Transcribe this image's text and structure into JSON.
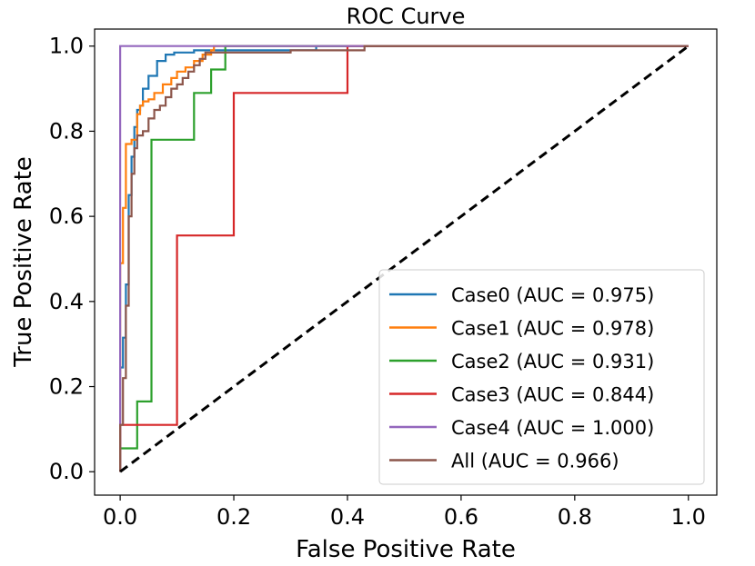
{
  "chart_data": {
    "type": "line",
    "title": "ROC Curve",
    "xlabel": "False Positive Rate",
    "ylabel": "True Positive Rate",
    "xlim": [
      -0.045,
      1.05
    ],
    "ylim": [
      -0.055,
      1.04
    ],
    "xticks": [
      0.0,
      0.2,
      0.4,
      0.6,
      0.8,
      1.0
    ],
    "yticks": [
      0.0,
      0.2,
      0.4,
      0.6,
      0.8,
      1.0
    ],
    "xtick_labels": [
      "0.0",
      "0.2",
      "0.4",
      "0.6",
      "0.8",
      "1.0"
    ],
    "ytick_labels": [
      "0.0",
      "0.2",
      "0.4",
      "0.6",
      "0.8",
      "1.0"
    ],
    "legend_position": "lower-right",
    "grid": false,
    "series": [
      {
        "name": "Case0 (AUC = 0.975)",
        "color": "#1f77b4",
        "x": [
          0,
          0,
          0.005,
          0.005,
          0.01,
          0.01,
          0.015,
          0.015,
          0.02,
          0.02,
          0.025,
          0.025,
          0.03,
          0.03,
          0.035,
          0.035,
          0.04,
          0.04,
          0.05,
          0.05,
          0.065,
          0.065,
          0.08,
          0.08,
          0.095,
          0.095,
          0.13,
          0.13,
          0.345,
          0.345,
          1.0
        ],
        "y": [
          0,
          0.245,
          0.245,
          0.315,
          0.315,
          0.44,
          0.44,
          0.65,
          0.65,
          0.74,
          0.74,
          0.81,
          0.81,
          0.85,
          0.85,
          0.86,
          0.86,
          0.9,
          0.9,
          0.93,
          0.93,
          0.965,
          0.965,
          0.98,
          0.98,
          0.985,
          0.985,
          0.99,
          0.99,
          1.0,
          1.0
        ]
      },
      {
        "name": "Case1 (AUC = 0.978)",
        "color": "#ff7f0e",
        "x": [
          0,
          0,
          0.005,
          0.005,
          0.01,
          0.01,
          0.02,
          0.02,
          0.03,
          0.03,
          0.035,
          0.035,
          0.04,
          0.04,
          0.05,
          0.05,
          0.06,
          0.06,
          0.075,
          0.075,
          0.09,
          0.09,
          0.1,
          0.1,
          0.115,
          0.115,
          0.13,
          0.13,
          0.145,
          0.145,
          0.16,
          0.16,
          0.165,
          0.165,
          1.0
        ],
        "y": [
          0,
          0.49,
          0.49,
          0.62,
          0.62,
          0.77,
          0.77,
          0.78,
          0.78,
          0.84,
          0.84,
          0.86,
          0.86,
          0.87,
          0.87,
          0.875,
          0.875,
          0.89,
          0.89,
          0.91,
          0.91,
          0.925,
          0.925,
          0.94,
          0.94,
          0.95,
          0.95,
          0.965,
          0.965,
          0.98,
          0.98,
          0.99,
          0.99,
          1.0,
          1.0
        ]
      },
      {
        "name": "Case2 (AUC = 0.931)",
        "color": "#2ca02c",
        "x": [
          0,
          0,
          0.03,
          0.03,
          0.055,
          0.055,
          0.13,
          0.13,
          0.16,
          0.16,
          0.185,
          0.185,
          1.0
        ],
        "y": [
          0,
          0.055,
          0.055,
          0.165,
          0.165,
          0.78,
          0.78,
          0.89,
          0.89,
          0.945,
          0.945,
          1.0,
          1.0
        ]
      },
      {
        "name": "Case3 (AUC = 0.844)",
        "color": "#d62728",
        "x": [
          0,
          0,
          0.1,
          0.1,
          0.2,
          0.2,
          0.4,
          0.4,
          1.0
        ],
        "y": [
          0,
          0.11,
          0.11,
          0.555,
          0.555,
          0.89,
          0.89,
          1.0,
          1.0
        ]
      },
      {
        "name": "Case4 (AUC = 1.000)",
        "color": "#9467bd",
        "x": [
          0,
          0,
          1.0
        ],
        "y": [
          0,
          1.0,
          1.0
        ]
      },
      {
        "name": "All (AUC = 0.966)",
        "color": "#8c564b",
        "x": [
          0,
          0,
          0.005,
          0.005,
          0.01,
          0.01,
          0.015,
          0.015,
          0.02,
          0.02,
          0.025,
          0.025,
          0.03,
          0.03,
          0.04,
          0.04,
          0.05,
          0.05,
          0.06,
          0.06,
          0.07,
          0.07,
          0.08,
          0.08,
          0.09,
          0.09,
          0.1,
          0.1,
          0.11,
          0.11,
          0.12,
          0.12,
          0.13,
          0.13,
          0.14,
          0.14,
          0.15,
          0.15,
          0.3,
          0.3,
          0.43,
          0.43,
          1.0
        ],
        "y": [
          0,
          0.11,
          0.11,
          0.22,
          0.22,
          0.39,
          0.39,
          0.6,
          0.6,
          0.7,
          0.7,
          0.76,
          0.76,
          0.79,
          0.79,
          0.8,
          0.8,
          0.83,
          0.83,
          0.85,
          0.85,
          0.86,
          0.86,
          0.88,
          0.88,
          0.9,
          0.9,
          0.91,
          0.91,
          0.925,
          0.925,
          0.94,
          0.94,
          0.955,
          0.955,
          0.97,
          0.97,
          0.985,
          0.985,
          0.99,
          0.99,
          1.0,
          1.0
        ]
      }
    ],
    "reference_line": {
      "name": "chance",
      "color": "#000000",
      "x": [
        0,
        1
      ],
      "y": [
        0,
        1
      ],
      "style": "dashed"
    }
  }
}
